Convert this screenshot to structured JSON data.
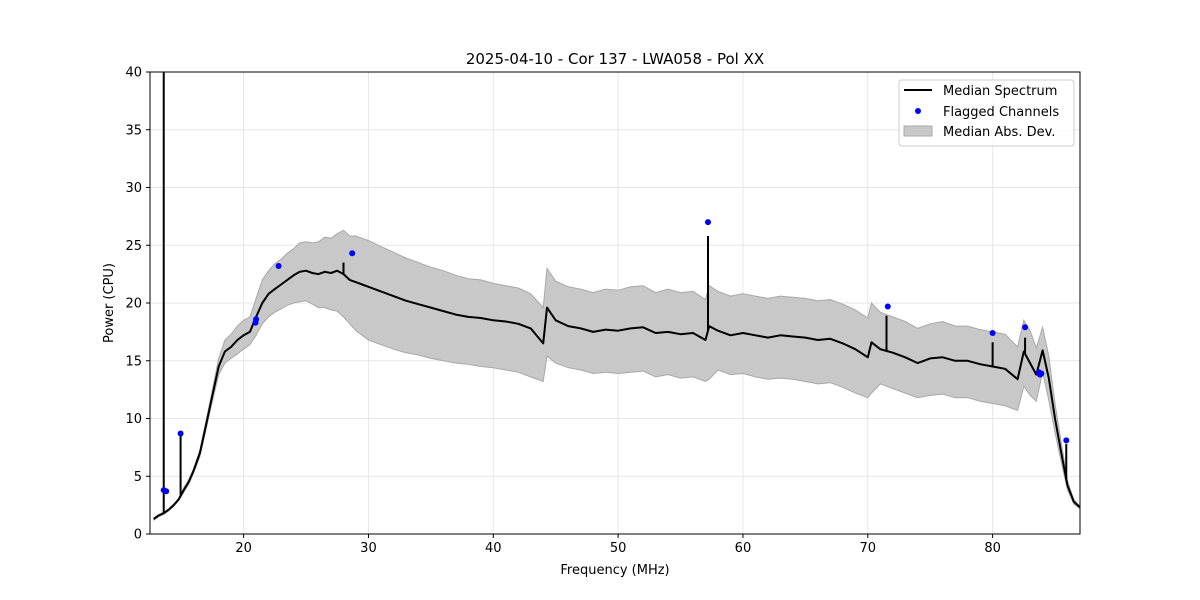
{
  "chart_data": {
    "type": "line",
    "title": "2025-04-10 - Cor 137 - LWA058 - Pol XX",
    "xlabel": "Frequency (MHz)",
    "ylabel": "Power (CPU)",
    "xlim": [
      12.5,
      87
    ],
    "ylim": [
      0,
      40
    ],
    "xticks": [
      20,
      30,
      40,
      50,
      60,
      70,
      80
    ],
    "yticks": [
      0,
      5,
      10,
      15,
      20,
      25,
      30,
      35,
      40
    ],
    "grid": true,
    "legend_position": "top-right",
    "legend": [
      {
        "label": "Median Spectrum",
        "kind": "line",
        "color": "#000000"
      },
      {
        "label": "Flagged Channels",
        "kind": "marker",
        "color": "#0000ff"
      },
      {
        "label": "Median Abs. Dev.",
        "kind": "band",
        "color": "#c8c8c8"
      }
    ],
    "series": [
      {
        "name": "Median Spectrum",
        "color": "#000000",
        "x": [
          12.8,
          13.2,
          13.6,
          14.0,
          14.4,
          14.8,
          15.2,
          15.6,
          16.0,
          16.5,
          17.0,
          17.5,
          18.0,
          18.5,
          19.0,
          19.5,
          20.0,
          20.5,
          21.0,
          21.5,
          22.0,
          22.5,
          23.0,
          23.5,
          24.0,
          24.5,
          25.0,
          25.5,
          26.0,
          26.5,
          27.0,
          27.5,
          28.0,
          28.5,
          29.0,
          29.5,
          30.0,
          31.0,
          32.0,
          33.0,
          34.0,
          35.0,
          36.0,
          37.0,
          38.0,
          39.0,
          40.0,
          41.0,
          42.0,
          43.0,
          44.0,
          44.3,
          45.0,
          46.0,
          47.0,
          48.0,
          49.0,
          50.0,
          51.0,
          52.0,
          53.0,
          54.0,
          55.0,
          56.0,
          57.0,
          57.3,
          58.0,
          59.0,
          60.0,
          61.0,
          62.0,
          63.0,
          64.0,
          65.0,
          66.0,
          67.0,
          68.0,
          69.0,
          70.0,
          70.3,
          71.0,
          72.0,
          73.0,
          74.0,
          75.0,
          76.0,
          77.0,
          78.0,
          79.0,
          80.0,
          81.0,
          82.0,
          82.5,
          83.0,
          83.5,
          84.0,
          84.5,
          85.0,
          85.5,
          86.0,
          86.5,
          87.0
        ],
        "y": [
          1.3,
          1.6,
          1.8,
          2.1,
          2.5,
          3.0,
          3.8,
          4.5,
          5.5,
          7.0,
          9.5,
          12.0,
          14.5,
          15.8,
          16.2,
          16.8,
          17.2,
          17.5,
          18.8,
          20.0,
          20.8,
          21.2,
          21.6,
          22.0,
          22.4,
          22.7,
          22.8,
          22.6,
          22.5,
          22.7,
          22.6,
          22.8,
          22.5,
          22.0,
          21.8,
          21.6,
          21.4,
          21.0,
          20.6,
          20.2,
          19.9,
          19.6,
          19.3,
          19.0,
          18.8,
          18.7,
          18.5,
          18.4,
          18.2,
          17.8,
          16.5,
          19.6,
          18.5,
          18.0,
          17.8,
          17.5,
          17.7,
          17.6,
          17.8,
          17.9,
          17.4,
          17.5,
          17.3,
          17.4,
          16.8,
          18.0,
          17.6,
          17.2,
          17.4,
          17.2,
          17.0,
          17.2,
          17.1,
          17.0,
          16.8,
          16.9,
          16.5,
          16.0,
          15.3,
          16.6,
          16.0,
          15.7,
          15.3,
          14.8,
          15.2,
          15.3,
          15.0,
          15.0,
          14.7,
          14.5,
          14.3,
          13.4,
          15.8,
          14.8,
          13.8,
          15.9,
          13.5,
          10.0,
          7.0,
          4.2,
          2.8,
          2.3
        ],
        "spikes": [
          {
            "x": 13.6,
            "y": 40.0
          },
          {
            "x": 14.95,
            "y": 8.7
          },
          {
            "x": 28.0,
            "y": 23.5
          },
          {
            "x": 57.2,
            "y": 25.8
          },
          {
            "x": 71.5,
            "y": 18.9
          },
          {
            "x": 80.0,
            "y": 16.6
          },
          {
            "x": 82.6,
            "y": 17.0
          },
          {
            "x": 85.9,
            "y": 7.8
          }
        ]
      },
      {
        "name": "Median Abs. Dev.",
        "color": "#c8c8c8",
        "x": [
          12.8,
          13.2,
          13.6,
          14.0,
          14.4,
          14.8,
          15.2,
          15.6,
          16.0,
          16.5,
          17.0,
          17.5,
          18.0,
          18.5,
          19.0,
          19.5,
          20.0,
          20.5,
          21.0,
          21.5,
          22.0,
          22.5,
          23.0,
          23.5,
          24.0,
          24.5,
          25.0,
          25.5,
          26.0,
          26.5,
          27.0,
          27.5,
          28.0,
          28.5,
          29.0,
          29.5,
          30.0,
          31.0,
          32.0,
          33.0,
          34.0,
          35.0,
          36.0,
          37.0,
          38.0,
          39.0,
          40.0,
          41.0,
          42.0,
          43.0,
          44.0,
          44.3,
          45.0,
          46.0,
          47.0,
          48.0,
          49.0,
          50.0,
          51.0,
          52.0,
          53.0,
          54.0,
          55.0,
          56.0,
          57.0,
          57.3,
          58.0,
          59.0,
          60.0,
          61.0,
          62.0,
          63.0,
          64.0,
          65.0,
          66.0,
          67.0,
          68.0,
          69.0,
          70.0,
          70.3,
          71.0,
          72.0,
          73.0,
          74.0,
          75.0,
          76.0,
          77.0,
          78.0,
          79.0,
          80.0,
          81.0,
          82.0,
          82.5,
          83.0,
          83.5,
          84.0,
          84.5,
          85.0,
          85.5,
          86.0,
          86.5,
          87.0
        ],
        "lower": [
          1.2,
          1.5,
          1.7,
          2.0,
          2.4,
          2.9,
          3.6,
          4.3,
          5.3,
          6.7,
          9.1,
          11.5,
          13.8,
          14.8,
          15.2,
          15.6,
          16.0,
          16.4,
          17.2,
          18.2,
          18.8,
          19.2,
          19.5,
          19.8,
          20.0,
          20.1,
          20.2,
          19.9,
          19.6,
          19.6,
          19.4,
          19.3,
          18.8,
          18.2,
          17.6,
          17.2,
          16.8,
          16.4,
          16.0,
          15.7,
          15.5,
          15.2,
          15.0,
          14.8,
          14.7,
          14.5,
          14.4,
          14.2,
          14.0,
          13.6,
          13.2,
          15.4,
          14.8,
          14.4,
          14.2,
          13.9,
          14.0,
          13.9,
          14.0,
          14.1,
          13.6,
          13.8,
          13.5,
          13.6,
          13.2,
          13.4,
          14.2,
          13.8,
          13.9,
          13.6,
          13.4,
          13.5,
          13.4,
          13.2,
          13.0,
          13.1,
          12.7,
          12.2,
          11.8,
          12.2,
          13.0,
          12.6,
          12.2,
          11.8,
          12.0,
          12.1,
          11.8,
          11.8,
          11.5,
          11.3,
          11.1,
          10.7,
          12.8,
          12.0,
          11.5,
          14.0,
          11.6,
          8.8,
          6.2,
          3.8,
          2.6,
          2.2
        ],
        "upper": [
          1.4,
          1.7,
          1.9,
          2.2,
          2.6,
          3.1,
          4.0,
          4.7,
          5.7,
          7.3,
          9.9,
          12.5,
          15.2,
          16.8,
          17.3,
          18.0,
          18.5,
          18.8,
          20.4,
          22.0,
          22.8,
          23.4,
          23.8,
          24.3,
          24.7,
          25.2,
          25.3,
          25.2,
          25.3,
          25.7,
          25.6,
          26.0,
          26.3,
          25.8,
          25.8,
          25.6,
          25.4,
          24.9,
          24.4,
          23.9,
          23.5,
          23.1,
          22.8,
          22.4,
          22.1,
          22.0,
          21.7,
          21.5,
          21.3,
          20.8,
          19.6,
          23.0,
          21.9,
          21.4,
          21.2,
          20.9,
          21.2,
          21.1,
          21.4,
          21.5,
          20.9,
          21.2,
          20.9,
          21.0,
          20.3,
          21.5,
          21.0,
          20.6,
          20.8,
          20.6,
          20.4,
          20.6,
          20.5,
          20.4,
          20.2,
          20.3,
          19.9,
          19.4,
          18.7,
          20.0,
          19.2,
          18.8,
          18.4,
          17.8,
          18.2,
          18.4,
          18.0,
          18.0,
          17.7,
          17.5,
          17.3,
          16.2,
          18.5,
          17.6,
          16.1,
          17.9,
          15.4,
          11.3,
          7.9,
          4.6,
          3.0,
          2.4
        ]
      }
    ],
    "flagged_channels": {
      "name": "Flagged Channels",
      "color": "#0000ff",
      "x": [
        13.6,
        13.8,
        14.95,
        20.95,
        21.0,
        22.8,
        28.7,
        57.2,
        71.6,
        80.0,
        82.6,
        83.7,
        83.8,
        83.9,
        85.9
      ],
      "y": [
        3.8,
        3.7,
        8.7,
        18.3,
        18.6,
        23.2,
        24.3,
        27.0,
        19.7,
        17.4,
        17.9,
        14.0,
        13.8,
        13.9,
        8.1
      ]
    }
  }
}
